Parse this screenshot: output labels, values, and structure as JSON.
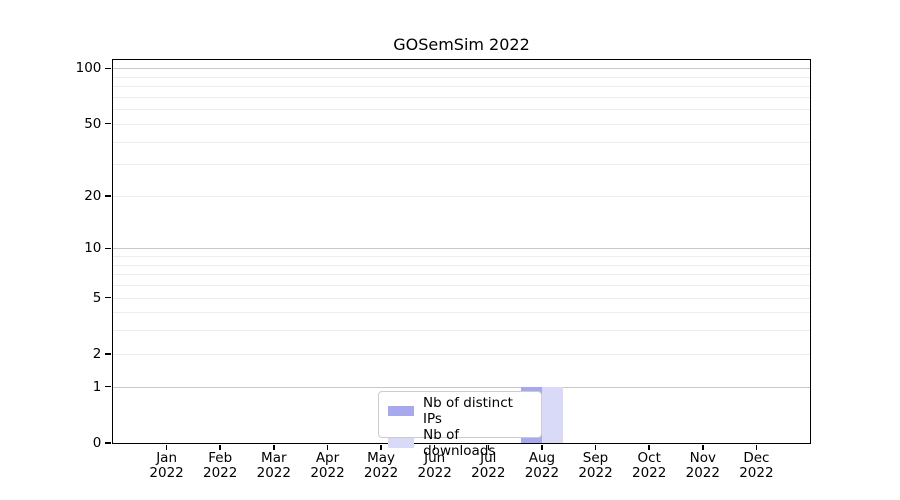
{
  "chart_data": {
    "type": "bar",
    "title": "GOSemSim 2022",
    "categories": [
      "Jan 2022",
      "Feb 2022",
      "Mar 2022",
      "Apr 2022",
      "May 2022",
      "Jun 2022",
      "Jul 2022",
      "Aug 2022",
      "Sep 2022",
      "Oct 2022",
      "Nov 2022",
      "Dec 2022"
    ],
    "series": [
      {
        "name": "Nb of distinct IPs",
        "color": "#a8a8ee",
        "values": [
          0,
          0,
          0,
          0,
          0,
          0,
          0,
          1,
          0,
          0,
          0,
          0
        ]
      },
      {
        "name": "Nb of downloads",
        "color": "#d9d9f8",
        "values": [
          0,
          0,
          0,
          0,
          0,
          0,
          0,
          1,
          0,
          0,
          0,
          0
        ]
      }
    ],
    "y_scale": "log1p",
    "y_ticks": [
      0,
      1,
      2,
      5,
      10,
      20,
      50,
      100
    ],
    "y_minor_gridlines": [
      2,
      3,
      4,
      5,
      6,
      7,
      8,
      9,
      20,
      30,
      40,
      50,
      60,
      70,
      80,
      90
    ],
    "y_major_gridlines": [
      1,
      10,
      100
    ],
    "ylim": [
      0,
      110
    ],
    "xlabel": "",
    "ylabel": "",
    "grid": "horizontal",
    "legend_position": "inside-bottom-center",
    "colors": {
      "frame": "#000000",
      "grid_minor": "#ededed",
      "grid_major": "#c8c8c8",
      "legend_border": "#cccccc",
      "background": "#ffffff"
    }
  }
}
